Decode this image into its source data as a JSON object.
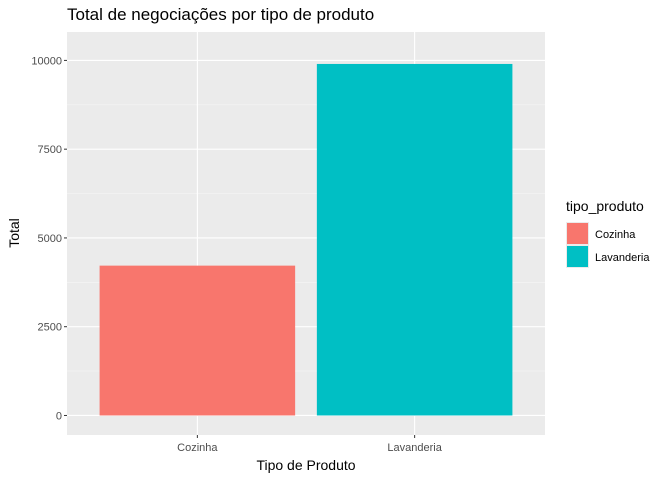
{
  "chart_data": {
    "type": "bar",
    "title": "Total de negociações por tipo de produto",
    "xlabel": "Tipo de Produto",
    "ylabel": "Total",
    "categories": [
      "Cozinha",
      "Lavanderia"
    ],
    "values": [
      4220,
      9900
    ],
    "colors": [
      "#F8766D",
      "#00BFC4"
    ],
    "ylim": [
      -550,
      10800
    ],
    "yticks": [
      0,
      2500,
      5000,
      7500,
      10000
    ],
    "ytick_labels": [
      "0",
      "2500",
      "5000",
      "7500",
      "10000"
    ],
    "grid": true,
    "legend": {
      "title": "tipo_produto",
      "position": "right",
      "entries": [
        "Cozinha",
        "Lavanderia"
      ]
    }
  }
}
